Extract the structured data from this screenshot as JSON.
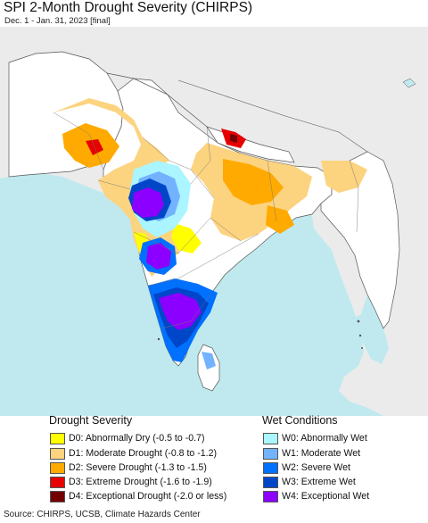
{
  "header": {
    "title": "SPI 2-Month Drought Severity (CHIRPS)",
    "subtitle": "Dec. 1 - Jan. 31, 2023 [final]"
  },
  "map": {
    "colors": {
      "land": "#ebebeb",
      "ocean": "#bfe9ee",
      "border": "#555555"
    }
  },
  "legend": {
    "drought": {
      "title": "Drought Severity",
      "items": [
        {
          "code": "D0",
          "label": "D0: Abnormally Dry (-0.5 to -0.7)",
          "color": "#ffff00"
        },
        {
          "code": "D1",
          "label": "D1: Moderate Drought (-0.8 to -1.2)",
          "color": "#fcd37f"
        },
        {
          "code": "D2",
          "label": "D2: Severe Drought (-1.3 to -1.5)",
          "color": "#ffaa00"
        },
        {
          "code": "D3",
          "label": "D3: Extreme Drought (-1.6 to -1.9)",
          "color": "#e60000"
        },
        {
          "code": "D4",
          "label": "D4: Exceptional Drought (-2.0 or less)",
          "color": "#730000"
        }
      ]
    },
    "wet": {
      "title": "Wet Conditions",
      "items": [
        {
          "code": "W0",
          "label": "W0: Abnormally Wet",
          "color": "#aaf5ff"
        },
        {
          "code": "W1",
          "label": "W1: Moderate Wet",
          "color": "#73b2ff"
        },
        {
          "code": "W2",
          "label": "W2: Severe Wet",
          "color": "#0070ff"
        },
        {
          "code": "W3",
          "label": "W3: Extreme Wet",
          "color": "#0046c8"
        },
        {
          "code": "W4",
          "label": "W4: Exceptional Wet",
          "color": "#8c00ff"
        }
      ]
    }
  },
  "footer": {
    "source": "Source: CHIRPS, UCSB, Climate Hazards Center"
  }
}
